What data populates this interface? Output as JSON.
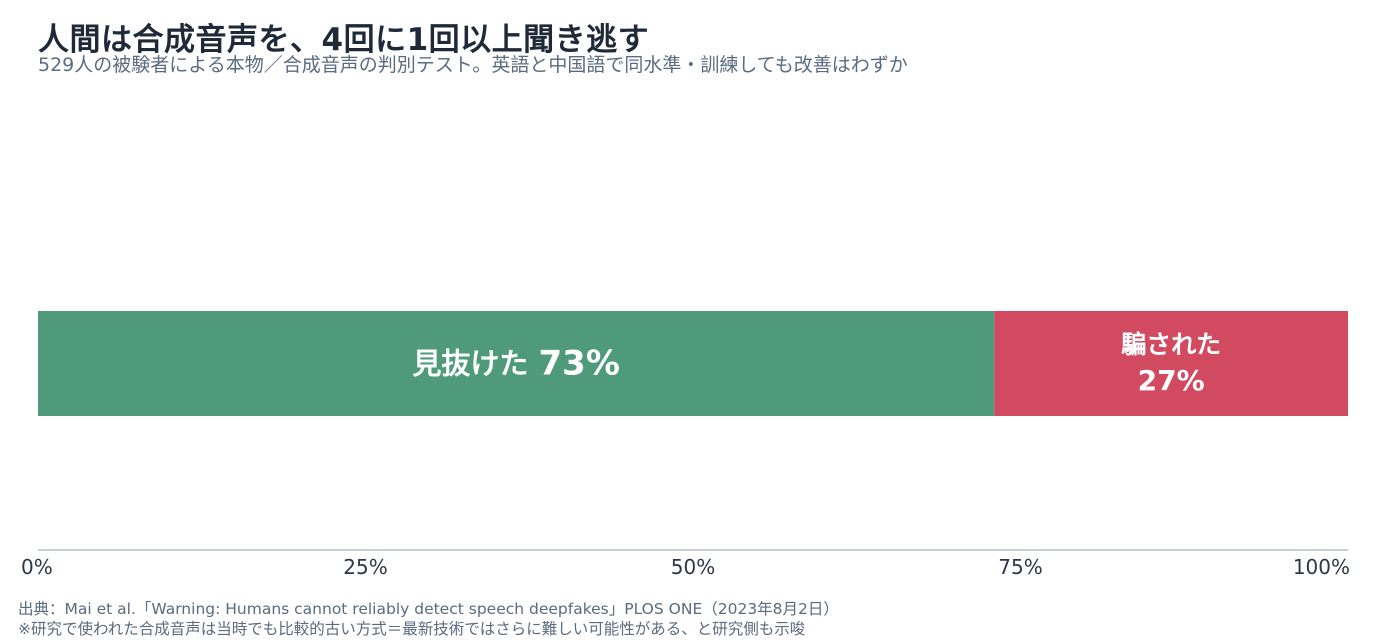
{
  "title": "人間は合成音声を、4回に1回以上聞き逃す",
  "subtitle": "529人の被験者による本物／合成音声の判別テスト。英語と中国語で同水準・訓練しても改善はわずか",
  "chart_data": {
    "type": "bar",
    "orientation": "horizontal-stacked-100",
    "segments": [
      {
        "label": "見抜けた",
        "value": 73,
        "value_label": "73%",
        "color": "#4e9a7a"
      },
      {
        "label": "騙された",
        "value": 27,
        "value_label": "27%",
        "color": "#d24a5f"
      }
    ],
    "xlim": [
      0,
      100
    ],
    "ticks": [
      0,
      25,
      50,
      75,
      100
    ],
    "tick_labels": [
      "0%",
      "25%",
      "50%",
      "75%",
      "100%"
    ],
    "grid": false
  },
  "footer": {
    "source": "出典：Mai et al.「Warning: Humans cannot reliably detect speech deepfakes」PLOS ONE（2023年8月2日）",
    "note": "※研究で使われた合成音声は当時でも比較的古い方式＝最新技術ではさらに難しい可能性がある、と研究側も示唆"
  }
}
